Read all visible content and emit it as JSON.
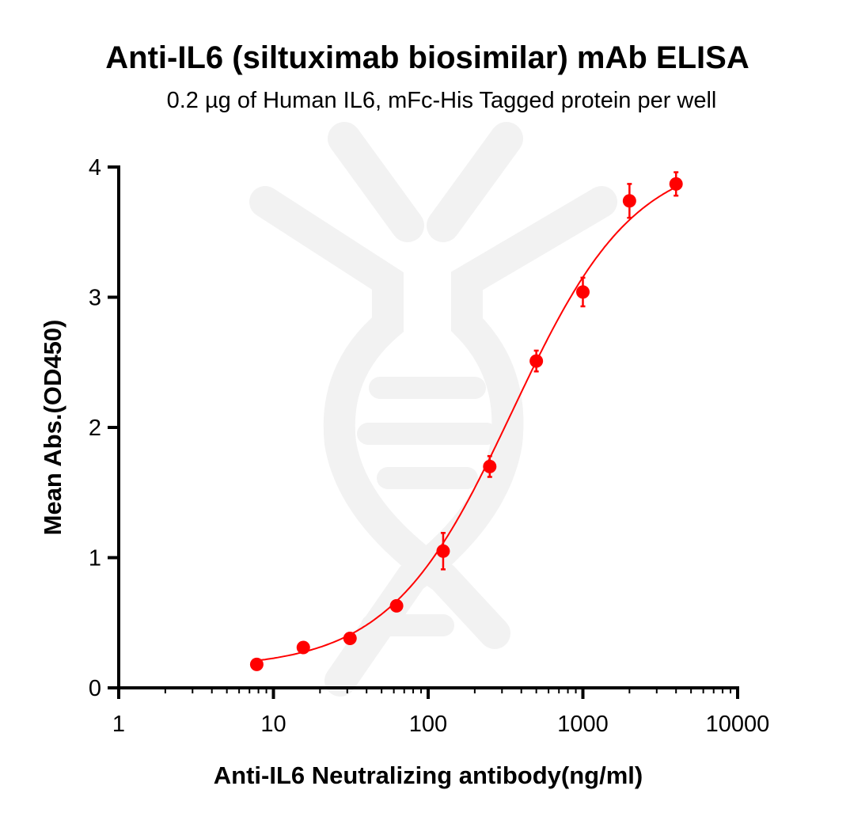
{
  "chart_data": {
    "type": "scatter",
    "title": "Anti-IL6 (siltuximab biosimilar) mAb ELISA",
    "subtitle": "0.2 µg of Human IL6, mFc-His Tagged protein per well",
    "xlabel": "Anti-IL6 Neutralizing antibody(ng/ml)",
    "ylabel": "Mean Abs.(OD450)",
    "xscale": "log",
    "xlim": [
      1,
      10000
    ],
    "ylim": [
      0,
      4
    ],
    "xticks": [
      "1",
      "10",
      "100",
      "1000",
      "10000"
    ],
    "yticks": [
      "0",
      "1",
      "2",
      "3",
      "4"
    ],
    "grid": false,
    "legend": "none",
    "fit_curve": "4-parameter logistic (sigmoidal)",
    "colors": {
      "series": "#ff0000",
      "axes": "#000000",
      "watermark": "#f2f2f2"
    },
    "x": [
      7.8,
      15.6,
      31.25,
      62.5,
      125,
      250,
      500,
      1000,
      2000,
      4000
    ],
    "y": [
      0.18,
      0.31,
      0.38,
      0.63,
      1.05,
      1.7,
      2.51,
      3.04,
      3.74,
      3.87
    ],
    "yerr": [
      0.02,
      0.04,
      0.03,
      0.03,
      0.14,
      0.08,
      0.08,
      0.11,
      0.13,
      0.09
    ]
  }
}
